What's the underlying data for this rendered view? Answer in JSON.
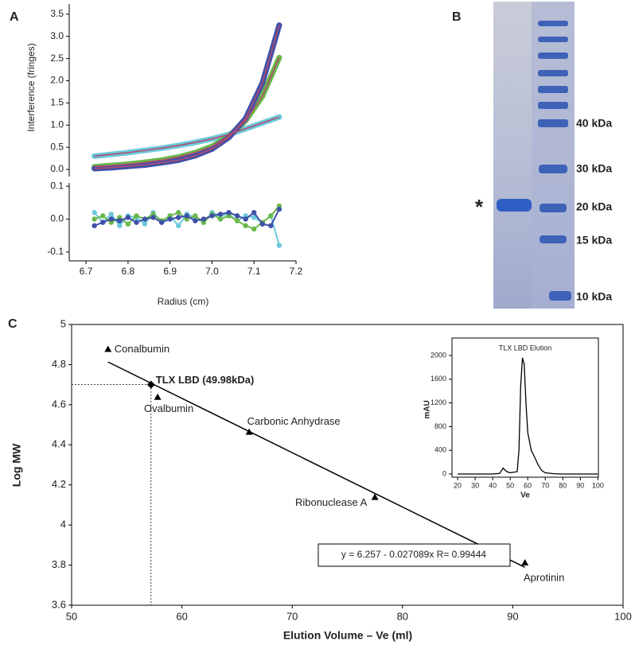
{
  "chart_data": [
    {
      "type": "line",
      "panel": "A",
      "ylabel": "Interference (fringes)",
      "x": [
        6.72,
        6.76,
        6.8,
        6.84,
        6.88,
        6.92,
        6.96,
        7.0,
        7.04,
        7.08,
        7.12,
        7.16
      ],
      "series": [
        {
          "color": "#6cc9dc",
          "values": [
            0.3,
            0.34,
            0.38,
            0.43,
            0.48,
            0.54,
            0.61,
            0.69,
            0.79,
            0.92,
            1.05,
            1.18
          ]
        },
        {
          "color": "#6ab84a",
          "values": [
            0.06,
            0.09,
            0.12,
            0.16,
            0.21,
            0.28,
            0.38,
            0.52,
            0.75,
            1.1,
            1.65,
            2.52
          ]
        },
        {
          "color": "#3f51a8",
          "values": [
            0.02,
            0.04,
            0.07,
            0.1,
            0.15,
            0.21,
            0.31,
            0.46,
            0.72,
            1.15,
            1.95,
            3.25
          ]
        }
      ],
      "fit_color": "#b24a6e",
      "xlim": [
        6.66,
        7.2
      ],
      "ylim": [
        -0.16,
        3.73
      ],
      "yticks": [
        {
          "value": 0,
          "label": "0.0"
        },
        0.5,
        {
          "value": 1,
          "label": "1.0"
        },
        1.5,
        {
          "value": 2,
          "label": "2.0"
        },
        2.5,
        {
          "value": 3,
          "label": "3.0"
        },
        3.5
      ]
    },
    {
      "type": "scatter",
      "xlabel": "Radius (cm)",
      "x": [
        6.72,
        6.74,
        6.76,
        6.78,
        6.8,
        6.82,
        6.84,
        6.86,
        6.88,
        6.9,
        6.92,
        6.94,
        6.96,
        6.98,
        7.0,
        7.02,
        7.04,
        7.06,
        7.08,
        7.1,
        7.12,
        7.14,
        7.16
      ],
      "series": [
        {
          "color": "#6cc9dc",
          "values": [
            0.02,
            -0.01,
            0.015,
            -0.02,
            0.01,
            0.005,
            -0.015,
            0.02,
            -0.01,
            0.01,
            -0.02,
            0.015,
            0.005,
            -0.01,
            0.02,
            0.01,
            0.015,
            -0.005,
            0.01,
            0.005,
            -0.01,
            0.01,
            -0.08
          ]
        },
        {
          "color": "#6ab84a",
          "values": [
            0,
            0.01,
            -0.01,
            0.005,
            -0.015,
            0.01,
            0,
            0.015,
            -0.005,
            0.01,
            0.02,
            0,
            0.01,
            -0.01,
            0.015,
            0,
            0.01,
            -0.005,
            -0.02,
            -0.03,
            -0.01,
            0.01,
            0.04
          ]
        },
        {
          "color": "#3f51a8",
          "values": [
            -0.02,
            -0.01,
            0,
            -0.005,
            0.005,
            -0.01,
            0,
            0.005,
            -0.01,
            0,
            0.005,
            0.01,
            -0.005,
            0,
            0.01,
            0.015,
            0.02,
            0.01,
            0,
            0.02,
            -0.015,
            -0.02,
            0.03
          ]
        }
      ],
      "xlim": [
        6.66,
        7.2
      ],
      "ylim": [
        -0.127,
        0.11
      ],
      "xticks": [
        6.7,
        6.8,
        6.9,
        {
          "value": 7,
          "label": "7.0"
        },
        7.1,
        7.2
      ],
      "yticks": [
        0.1,
        {
          "value": 0,
          "label": "0.0"
        },
        -0.1
      ]
    },
    {
      "type": "scatter",
      "panel": "C",
      "xlabel": "Elution Volume – Ve (ml)",
      "ylabel": "Log MW",
      "x": [
        53.3,
        57.8,
        66.1,
        77.5,
        91.1
      ],
      "values": [
        4.875,
        4.636,
        4.462,
        4.137,
        3.81
      ],
      "point_labels": [
        "Conalbumin",
        "Ovalbumin",
        "Carbonic Anhydrase",
        "Ribonuclease A",
        "Aprotinin"
      ],
      "color": "#000000",
      "highlight": {
        "label": "TLX LBD (49.98kDa)",
        "x": 57.2,
        "y": 4.7
      },
      "fit": {
        "label": "y = 6.257 - 0.027089x   R= 0.99444",
        "intercept": 6.257,
        "slope": -0.027089,
        "x_range": [
          53.3,
          91.1
        ]
      },
      "xlim": [
        50,
        100
      ],
      "ylim": [
        3.6,
        5
      ],
      "xticks": [
        50,
        60,
        70,
        80,
        90,
        100
      ],
      "yticks": [
        3.6,
        3.8,
        4,
        4.2,
        4.4,
        4.6,
        4.8,
        5
      ]
    },
    {
      "type": "line",
      "title": "TLX LBD Elution",
      "xlabel": "Ve",
      "ylabel": "mAU",
      "x": [
        20,
        30,
        40,
        44,
        46,
        48,
        50,
        54,
        55,
        56,
        57,
        58,
        59,
        60,
        62,
        64,
        66,
        68,
        70,
        75,
        80,
        90,
        100
      ],
      "values": [
        0,
        0,
        0,
        10,
        100,
        40,
        20,
        40,
        400,
        1500,
        1960,
        1850,
        1200,
        700,
        400,
        280,
        150,
        60,
        20,
        5,
        0,
        0,
        0
      ],
      "color": "#000000",
      "xlim": [
        16.8,
        100.3
      ],
      "ylim": [
        -54,
        2295
      ],
      "xticks": [
        20,
        30,
        40,
        50,
        60,
        70,
        80,
        90,
        100
      ],
      "yticks": [
        0,
        400,
        800,
        1200,
        1600,
        2000
      ]
    }
  ],
  "gel": {
    "panel": "B",
    "marker": "*",
    "ladder_labels": [
      "40 kDa",
      "30 kDa",
      "20 kDa",
      "15 kDa",
      "10 kDa"
    ]
  }
}
